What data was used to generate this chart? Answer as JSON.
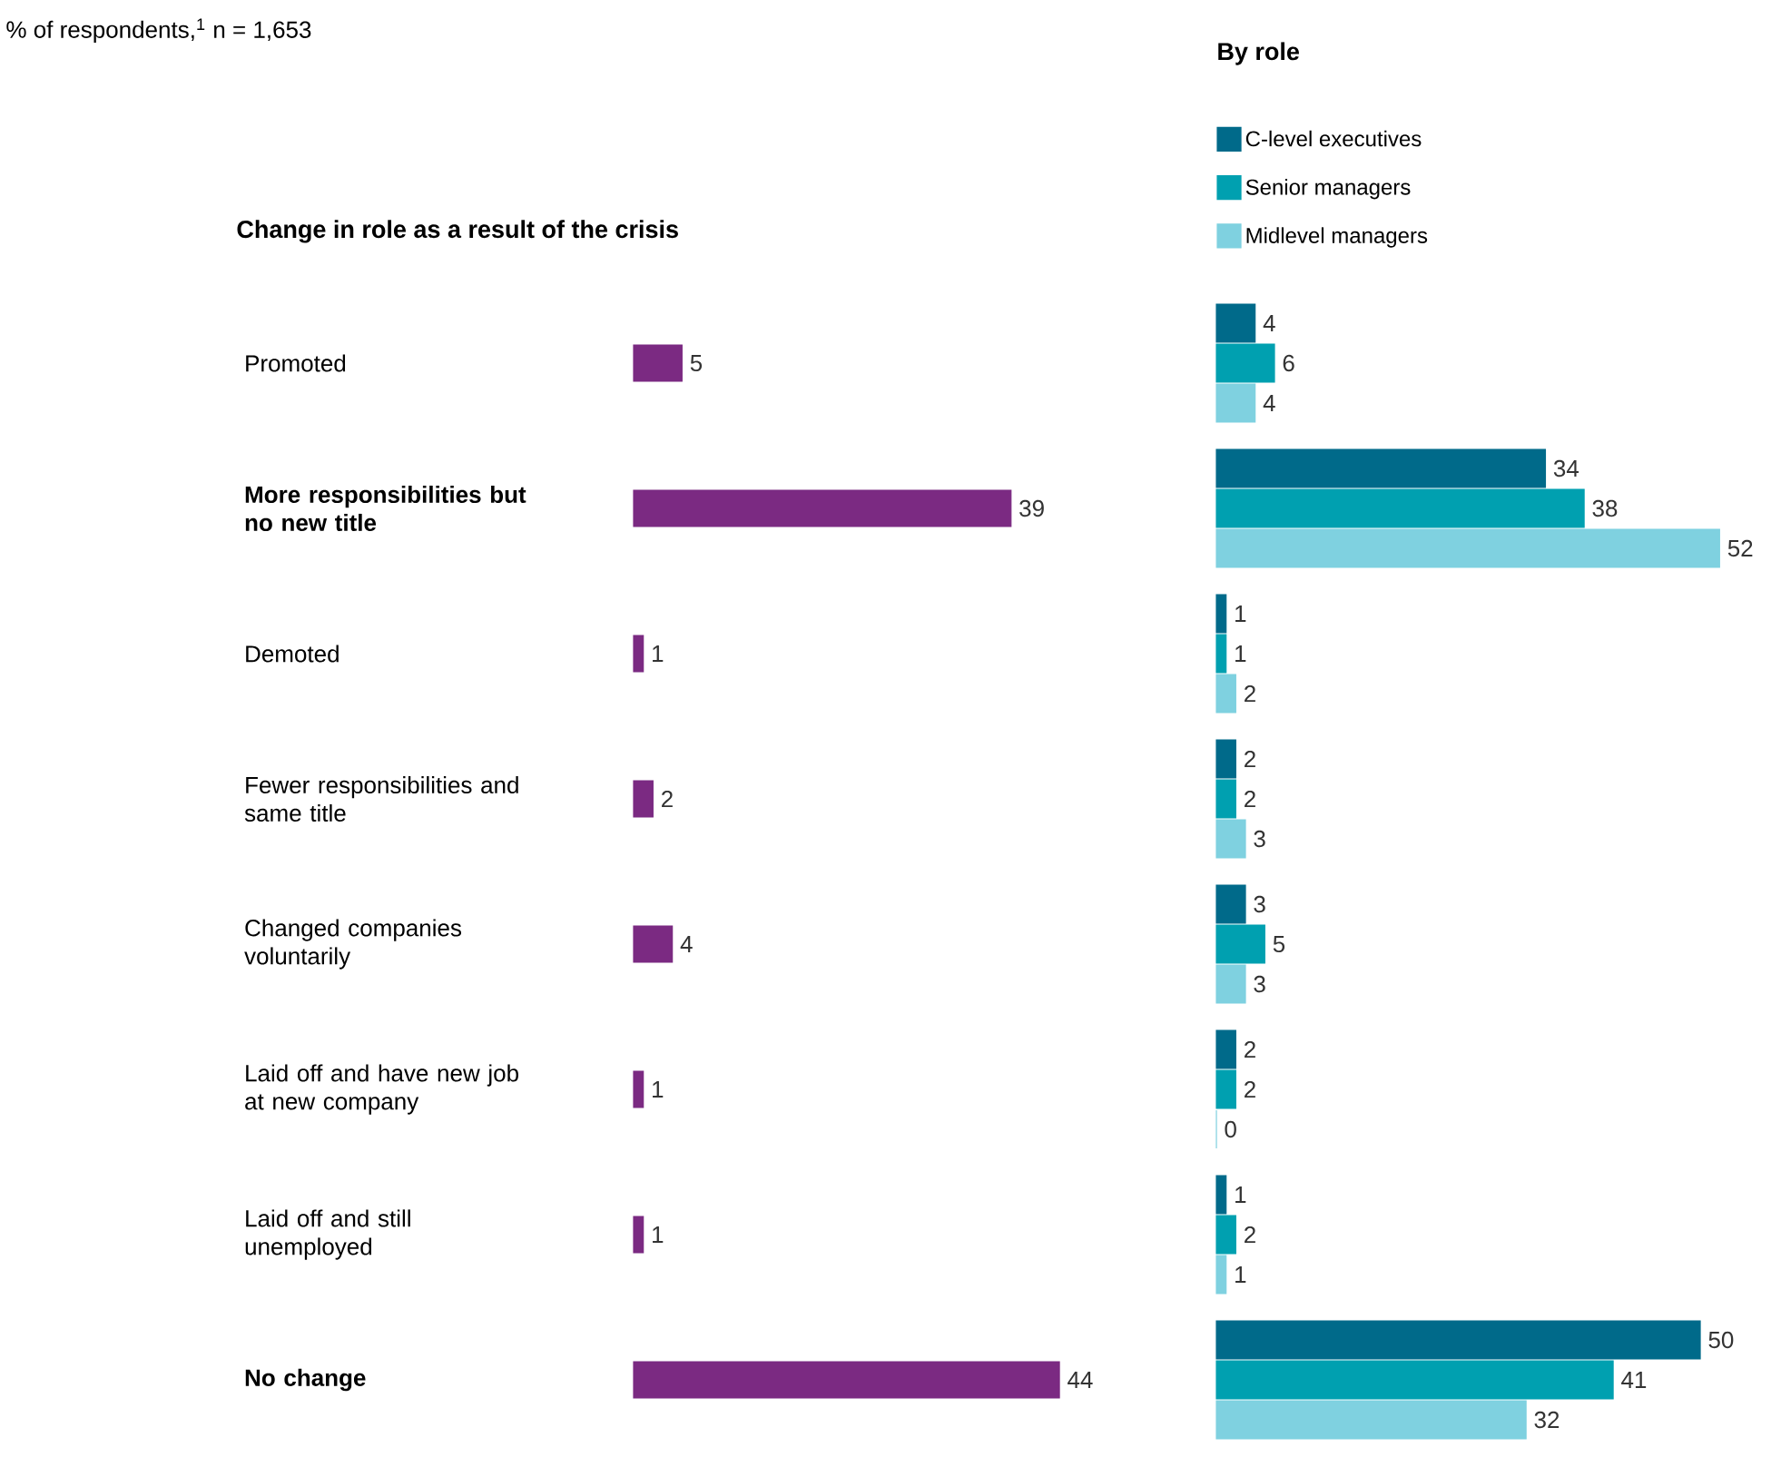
{
  "chart_data": [
    {
      "type": "bar",
      "orientation": "horizontal",
      "title": "Change in role as a result of the crisis",
      "subtitle": "% of respondents,$^{1}$ n = 1,653",
      "categories": [
        "Promoted",
        "**More responsibilities but no new title**",
        "Demoted",
        "Fewer responsibilities and same title",
        "Changed companies voluntarily",
        "Laid off and have new job at new company",
        "Laid off and still unemployed",
        "**No change**"
      ],
      "values": [
        5,
        39,
        1,
        2,
        4,
        1,
        1,
        44
      ],
      "color": "#7b2a82",
      "data_labels": true,
      "tick_labels": "y"
    },
    {
      "type": "bar",
      "orientation": "horizontal",
      "title": "By role",
      "categories": [
        null,
        null,
        null,
        null,
        null,
        null,
        null,
        null
      ],
      "series": [
        {
          "name": "C-level executives",
          "color": "#006a8a",
          "values": [
            4,
            34,
            1,
            2,
            3,
            2,
            1,
            50
          ]
        },
        {
          "name": "Senior managers",
          "color": "#00a0b0",
          "values": [
            6,
            38,
            1,
            2,
            5,
            2,
            2,
            41
          ]
        },
        {
          "name": "Midlevel managers",
          "color": "#7fd1e0",
          "values": [
            4,
            52,
            2,
            3,
            3,
            0,
            1,
            32
          ]
        }
      ],
      "data_labels": true,
      "tick_labels": false,
      "legend": "top left"
    }
  ]
}
